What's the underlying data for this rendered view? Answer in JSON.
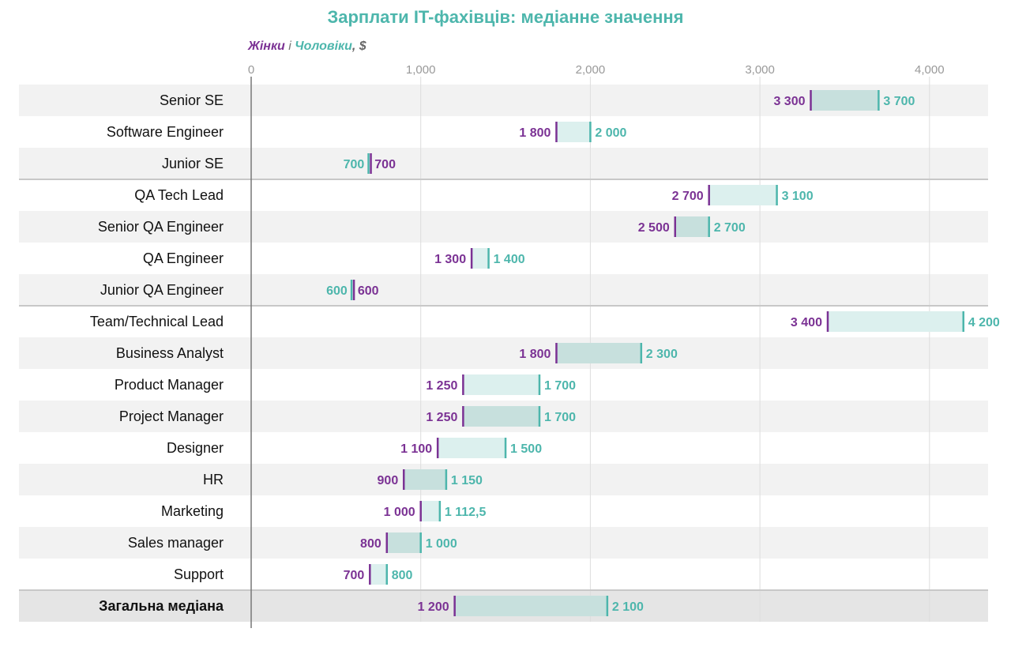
{
  "chart_data": {
    "type": "bar",
    "title": "Зарплати IT-фахівців: медіанне значення",
    "legend": {
      "women_label": "Жінки",
      "connector": " і ",
      "men_label": "Чоловіки",
      "unit": ", $"
    },
    "xlim": [
      0,
      4300
    ],
    "xticks": [
      0,
      1000,
      2000,
      3000,
      4000
    ],
    "xtick_labels": [
      "0",
      "1,000",
      "2,000",
      "3,000",
      "4,000"
    ],
    "grid": true,
    "colors": {
      "women": "#7b3294",
      "men": "#4db6ac",
      "band_light": "#dcf0ee",
      "band_dark": "#c7e0dd",
      "row_shade": "#f2f2f2",
      "total_shade": "#e5e5e5",
      "separator": "#c8c8c8",
      "grid": "#dddddd",
      "axis": "#777777"
    },
    "categories": [
      "Senior SE",
      "Software Engineer",
      "Junior SE",
      "QA Tech Lead",
      "Senior QA Engineer",
      "QA Engineer",
      "Junior QA Engineer",
      "Team/Technical Lead",
      "Business Analyst",
      "Product Manager",
      "Project Manager",
      "Designer",
      "HR",
      "Marketing",
      "Sales manager",
      "Support",
      "Загальна медіана"
    ],
    "series": [
      {
        "name": "Жінки",
        "values": [
          3300,
          1800,
          700,
          2700,
          2500,
          1300,
          600,
          3400,
          1800,
          1250,
          1250,
          1100,
          900,
          1000,
          800,
          700,
          1200
        ],
        "labels": [
          "3 300",
          "1 800",
          "700",
          "2 700",
          "2 500",
          "1 300",
          "600",
          "3 400",
          "1 800",
          "1 250",
          "1 250",
          "1 100",
          "900",
          "1 000",
          "800",
          "700",
          "1 200"
        ]
      },
      {
        "name": "Чоловіки",
        "values": [
          3700,
          2000,
          700,
          3100,
          2700,
          1400,
          600,
          4200,
          2300,
          1700,
          1700,
          1500,
          1150,
          1112.5,
          1000,
          800,
          2100
        ],
        "labels": [
          "3 700",
          "2 000",
          "700",
          "3 100",
          "2 700",
          "1 400",
          "600",
          "4 200",
          "2 300",
          "1 700",
          "1 700",
          "1 500",
          "1 150",
          "1 112,5",
          "1 000",
          "800",
          "2 100"
        ]
      }
    ],
    "group_separators_after": [
      "Junior SE",
      "Junior QA Engineer",
      "Support"
    ],
    "bold_categories": [
      "Загальна медіана"
    ]
  }
}
